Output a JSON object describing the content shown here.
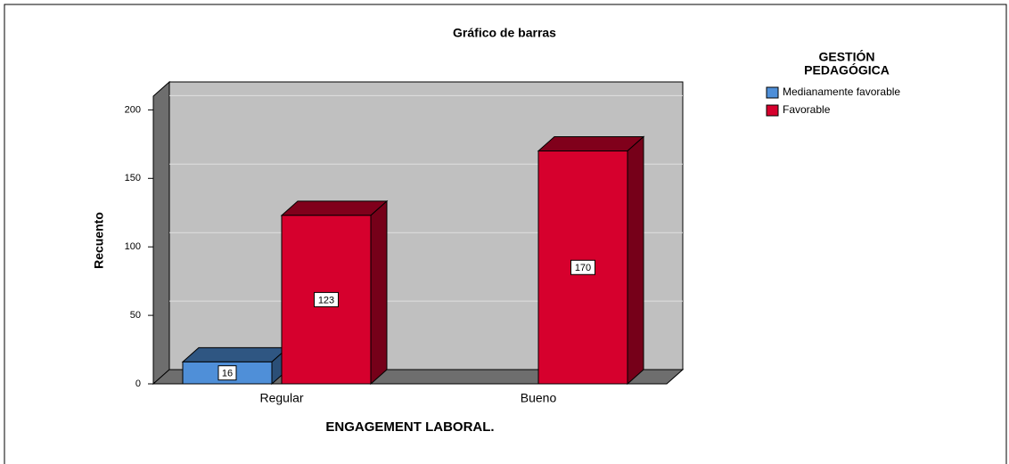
{
  "chart_data": {
    "type": "bar3d",
    "title": "Gráfico de barras",
    "x_label": "ENGAGEMENT LABORAL.",
    "y_label": "Recuento",
    "legend_title": [
      "GESTIÓN",
      "PEDAGÓGICA"
    ],
    "categories": [
      "Regular",
      "Bueno"
    ],
    "series": [
      {
        "name": "Medianamente favorable",
        "color": "#4f8fd8",
        "values": [
          16,
          null
        ]
      },
      {
        "name": "Favorable",
        "color": "#d6002d",
        "values": [
          123,
          170
        ]
      }
    ],
    "ylim": [
      0,
      210
    ],
    "yticks": [
      0,
      50,
      100,
      150,
      200
    ],
    "grid": true,
    "legend": "right"
  }
}
